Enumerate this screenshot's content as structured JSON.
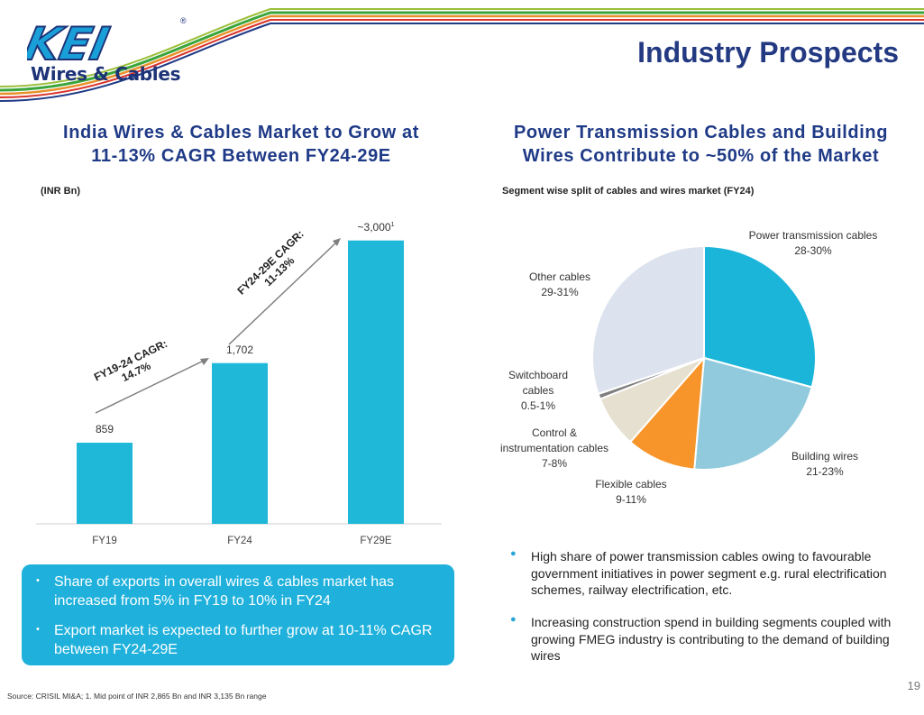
{
  "brand": {
    "logo_text": "KEI",
    "tagline": "Wires & Cables",
    "registered": "®",
    "colors": {
      "navy": "#1d3377",
      "cyan": "#1fb1dc",
      "stripe_green": "#3aa53a",
      "stripe_orange": "#e8912a",
      "stripe_red": "#d9332b",
      "stripe_blue": "#1f3a86"
    }
  },
  "page_title": "Industry Prospects",
  "left": {
    "heading_line1": "India Wires & Cables Market to Grow at",
    "heading_line2": "11-13% CAGR Between FY24-29E",
    "unit": "(INR Bn)",
    "cagr1_line1": "FY19-24 CAGR:",
    "cagr1_line2": "14.7%",
    "cagr2_line1": "FY24-29E CAGR:",
    "cagr2_line2": "11-13%",
    "bullets": [
      "Share of exports in overall wires & cables market has increased from 5% in FY19 to 10% in FY24",
      "Export market is expected to further grow at 10-11% CAGR between FY24-29E"
    ]
  },
  "right": {
    "heading_line1": "Power Transmission Cables and Building",
    "heading_line2": "Wires Contribute to ~50% of the Market",
    "subtitle": "Segment wise split of cables and wires market (FY24)",
    "bullets": [
      "High share of power transmission cables owing to favourable government initiatives in power segment e.g. rural electrification schemes, railway electrification, etc.",
      "Increasing construction spend in building segments coupled with growing FMEG industry is contributing to the demand of building wires"
    ]
  },
  "chart_data": [
    {
      "type": "bar",
      "title": "India Wires & Cables Market to Grow at 11-13% CAGR Between FY24-29E",
      "ylabel": "(INR Bn)",
      "categories": [
        "FY19",
        "FY24",
        "FY29E"
      ],
      "values": [
        859,
        1702,
        3000
      ],
      "value_labels": [
        "859",
        "1,702",
        "~3,000"
      ],
      "footnote_marks": [
        "",
        "",
        "1"
      ],
      "ylim": [
        0,
        3150
      ],
      "color": "#1fb8d8",
      "grid": false
    },
    {
      "type": "pie",
      "title": "Segment wise split of cables and wires market (FY24)",
      "slices": [
        {
          "name": "Power transmission cables",
          "range": "28-30%",
          "value": 29,
          "color": "#1ab5d9"
        },
        {
          "name": "Building wires",
          "range": "21-23%",
          "value": 22,
          "color": "#92cadd"
        },
        {
          "name": "Flexible cables",
          "range": "9-11%",
          "value": 10,
          "color": "#f7952b"
        },
        {
          "name": "Control & instrumentation cables",
          "range": "7-8%",
          "value": 7.5,
          "color": "#e5e0cf"
        },
        {
          "name": "Switchboard cables",
          "range": "0.5-1%",
          "value": 0.75,
          "color": "#7f7f7f"
        },
        {
          "name": "Other cables",
          "range": "29-31%",
          "value": 30,
          "color": "#dde3ee"
        }
      ]
    }
  ],
  "pie_labels": {
    "power": {
      "line1": "Power transmission cables",
      "line2": "28-30%"
    },
    "building": {
      "line1": "Building wires",
      "line2": "21-23%"
    },
    "flexible": {
      "line1": "Flexible cables",
      "line2": "9-11%"
    },
    "control": {
      "line1": "Control &",
      "line2": "instrumentation cables",
      "line3": "7-8%"
    },
    "switch": {
      "line1": "Switchboard",
      "line2": "cables",
      "line3": "0.5-1%"
    },
    "other": {
      "line1": "Other cables",
      "line2": "29-31%"
    }
  },
  "footer": {
    "source": "Source: CRISIL MI&A; 1. Mid point of INR 2,865 Bn and INR 3,135 Bn range",
    "page_number": "19"
  }
}
